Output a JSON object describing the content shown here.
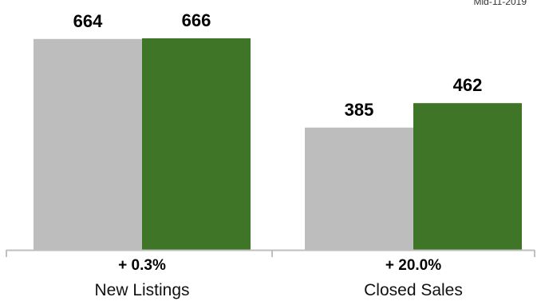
{
  "corner_note": "Mid-11-2019",
  "chart_data": {
    "type": "bar",
    "categories": [
      "New Listings",
      "Closed Sales"
    ],
    "series": [
      {
        "values": [
          664,
          385
        ],
        "color": "#bdbdbd"
      },
      {
        "values": [
          666,
          462
        ],
        "color": "#3f7527"
      }
    ],
    "changes": [
      "+ 0.3%",
      "+ 20.0%"
    ],
    "ylim": [
      0,
      666
    ],
    "grid": false,
    "legend": "none",
    "axis_color": "#bfbfbf"
  }
}
